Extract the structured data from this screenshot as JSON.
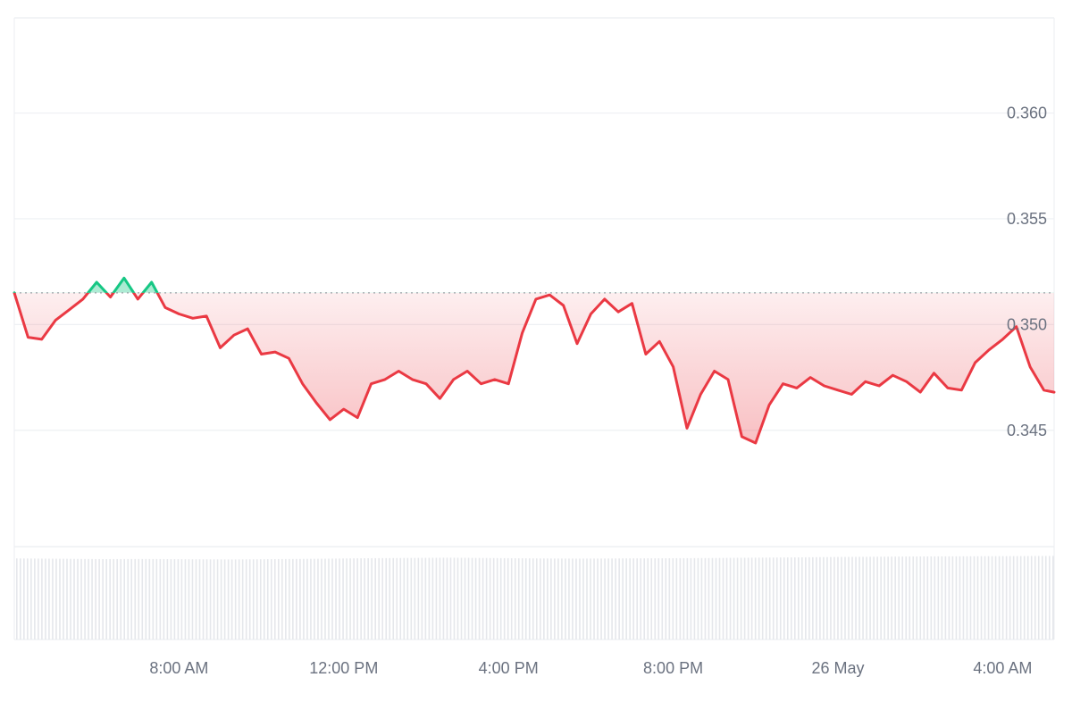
{
  "chart_data": {
    "type": "area",
    "title": "",
    "xlabel": "",
    "ylabel": "",
    "baseline_value": 0.3515,
    "ylim": [
      0.3395,
      0.3645
    ],
    "yticks": [
      0.345,
      0.35,
      0.355,
      0.36
    ],
    "ytick_labels": [
      "0.345",
      "0.350",
      "0.355",
      "0.360"
    ],
    "xlim": [
      "2025-05-25T04:00",
      "2025-05-26T05:15"
    ],
    "xticks": [
      "2025-05-25T08:00",
      "2025-05-25T12:00",
      "2025-05-25T16:00",
      "2025-05-25T20:00",
      "2025-05-26T00:00",
      "2025-05-26T04:00"
    ],
    "xtick_labels": [
      "8:00 AM",
      "12:00 PM",
      "4:00 PM",
      "8:00 PM",
      "26 May",
      "4:00 AM"
    ],
    "grid": true,
    "colors": {
      "up_line": "#16c784",
      "down_line": "#ea3943",
      "up_fill": "#16c784",
      "down_fill": "#ea3943",
      "grid": "#eef0f3",
      "baseline": "#9aa0a6",
      "volume": "#e5e7eb"
    },
    "series": [
      {
        "x": [
          "2025-05-25T04:00",
          "2025-05-25T04:20",
          "2025-05-25T04:40",
          "2025-05-25T05:00",
          "2025-05-25T05:20",
          "2025-05-25T05:40",
          "2025-05-25T06:00",
          "2025-05-25T06:20",
          "2025-05-25T06:40",
          "2025-05-25T07:00",
          "2025-05-25T07:20",
          "2025-05-25T07:40",
          "2025-05-25T08:00",
          "2025-05-25T08:20",
          "2025-05-25T08:40",
          "2025-05-25T09:00",
          "2025-05-25T09:20",
          "2025-05-25T09:40",
          "2025-05-25T10:00",
          "2025-05-25T10:20",
          "2025-05-25T10:40",
          "2025-05-25T11:00",
          "2025-05-25T11:20",
          "2025-05-25T11:40",
          "2025-05-25T12:00",
          "2025-05-25T12:20",
          "2025-05-25T12:40",
          "2025-05-25T13:00",
          "2025-05-25T13:20",
          "2025-05-25T13:40",
          "2025-05-25T14:00",
          "2025-05-25T14:20",
          "2025-05-25T14:40",
          "2025-05-25T15:00",
          "2025-05-25T15:20",
          "2025-05-25T15:40",
          "2025-05-25T16:00",
          "2025-05-25T16:20",
          "2025-05-25T16:40",
          "2025-05-25T17:00",
          "2025-05-25T17:20",
          "2025-05-25T17:40",
          "2025-05-25T18:00",
          "2025-05-25T18:20",
          "2025-05-25T18:40",
          "2025-05-25T19:00",
          "2025-05-25T19:20",
          "2025-05-25T19:40",
          "2025-05-25T20:00",
          "2025-05-25T20:20",
          "2025-05-25T20:40",
          "2025-05-25T21:00",
          "2025-05-25T21:20",
          "2025-05-25T21:40",
          "2025-05-25T22:00",
          "2025-05-25T22:20",
          "2025-05-25T22:40",
          "2025-05-25T23:00",
          "2025-05-25T23:20",
          "2025-05-25T23:40",
          "2025-05-26T00:00",
          "2025-05-26T00:20",
          "2025-05-26T00:40",
          "2025-05-26T01:00",
          "2025-05-26T01:20",
          "2025-05-26T01:40",
          "2025-05-26T02:00",
          "2025-05-26T02:20",
          "2025-05-26T02:40",
          "2025-05-26T03:00",
          "2025-05-26T03:20",
          "2025-05-26T03:40",
          "2025-05-26T04:00",
          "2025-05-26T04:20",
          "2025-05-26T04:40",
          "2025-05-26T05:00",
          "2025-05-26T05:15"
        ],
        "values": [
          0.3515,
          0.3494,
          0.3493,
          0.3502,
          0.3507,
          0.3512,
          0.352,
          0.3513,
          0.3522,
          0.3512,
          0.352,
          0.3508,
          0.3505,
          0.3503,
          0.3504,
          0.3489,
          0.3495,
          0.3498,
          0.3486,
          0.3487,
          0.3484,
          0.3472,
          0.3463,
          0.3455,
          0.346,
          0.3456,
          0.3472,
          0.3474,
          0.3478,
          0.3474,
          0.3472,
          0.3465,
          0.3474,
          0.3478,
          0.3472,
          0.3474,
          0.3472,
          0.3496,
          0.3512,
          0.3514,
          0.3509,
          0.3491,
          0.3505,
          0.3512,
          0.3506,
          0.351,
          0.3486,
          0.3492,
          0.348,
          0.3451,
          0.3467,
          0.3478,
          0.3474,
          0.3447,
          0.3444,
          0.3462,
          0.3472,
          0.347,
          0.3475,
          0.3471,
          0.3469,
          0.3467,
          0.3473,
          0.3471,
          0.3476,
          0.3473,
          0.3468,
          0.3477,
          0.347,
          0.3469,
          0.3482,
          0.3488,
          0.3493,
          0.3499,
          0.348,
          0.3469,
          0.3468
        ]
      }
    ],
    "volume": [
      0.6,
      0.55,
      0.5,
      0.52,
      0.48,
      0.45,
      0.5,
      0.55,
      0.62,
      0.66,
      0.7,
      0.65,
      0.6,
      0.57,
      0.6,
      0.62,
      0.65,
      0.7,
      0.74,
      0.8,
      0.84,
      0.88,
      0.9,
      0.92,
      0.95
    ]
  }
}
